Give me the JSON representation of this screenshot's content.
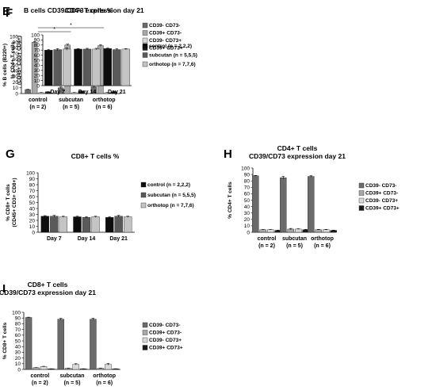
{
  "colors": {
    "control": "#0d0d0d",
    "subcutan": "#5a5a5a",
    "orthotop": "#c4c4c4",
    "dn": "#6b6b6b",
    "sp": "#a8a8a8",
    "dp_light": "#d9d9d9",
    "dp": "#1a1a1a"
  },
  "chart_data": [
    {
      "panel": "E",
      "type": "bar",
      "title": "B cells CD39/CD73 expression day 21",
      "ylabel": "% B cells (B220+)",
      "ylim": [
        0,
        100
      ],
      "yticks": [
        0,
        10,
        20,
        30,
        40,
        50,
        60,
        70,
        80,
        90,
        100
      ],
      "categories": [
        [
          "control",
          "(n = 2)"
        ],
        [
          "subcutan",
          "(n = 5)"
        ],
        [
          "orthotop",
          "(n = 6)"
        ]
      ],
      "series": [
        {
          "name": "CD39- CD73-",
          "color": "dn",
          "values": [
            7,
            10,
            12
          ],
          "err": [
            0.5,
            1.5,
            1.5
          ]
        },
        {
          "name": "CD39+ CD73-",
          "color": "sp",
          "values": [
            90,
            85,
            84
          ],
          "err": [
            1,
            1.5,
            1.5
          ]
        },
        {
          "name": "CD39- CD73+",
          "color": "dp_light",
          "values": [
            1.5,
            1.5,
            1.5
          ],
          "err": [
            0.3,
            0.3,
            0.3
          ]
        },
        {
          "name": "CD39+ CD73+",
          "color": "dp",
          "values": [
            3,
            4,
            3
          ],
          "err": [
            0.3,
            0.5,
            0.5
          ]
        }
      ],
      "significance": [
        {
          "label": "*",
          "from": 0,
          "to": 1
        },
        {
          "label": "*",
          "from": 0,
          "to": 2
        }
      ]
    },
    {
      "panel": "F",
      "type": "bar",
      "title": "CD4+ T cells %",
      "ylabel": [
        "% CD4+ T cells",
        "(CD45+ CD3+ CD4+)"
      ],
      "ylim": [
        0,
        100
      ],
      "yticks": [
        0,
        10,
        20,
        30,
        40,
        50,
        60,
        70,
        80,
        90,
        100
      ],
      "categories": [
        "Day 7",
        "Day 14",
        "Day 21"
      ],
      "series": [
        {
          "name": "control (n = 2,2,2)",
          "color": "control",
          "values": [
            70,
            72,
            73
          ],
          "err": [
            1.5,
            1,
            1
          ]
        },
        {
          "name": "subcutan (n = 5,5,5)",
          "color": "subcutan",
          "values": [
            71,
            72,
            71
          ],
          "err": [
            2,
            1.5,
            1.5
          ]
        },
        {
          "name": "orthotop (n = 7,7,6)",
          "color": "orthotop",
          "values": [
            72,
            72,
            72
          ],
          "err": [
            2,
            1.5,
            1
          ]
        }
      ]
    },
    {
      "panel": "G",
      "type": "bar",
      "title": "CD8+ T cells %",
      "ylabel": [
        "% CD8+ T cells",
        "(CD45+ CD3+ CD8+)"
      ],
      "ylim": [
        0,
        100
      ],
      "yticks": [
        0,
        10,
        20,
        30,
        40,
        50,
        60,
        70,
        80,
        90,
        100
      ],
      "categories": [
        "Day 7",
        "Day 14",
        "Day 21"
      ],
      "series": [
        {
          "name": "control (n = 2,2,2)",
          "color": "control",
          "values": [
            27,
            26,
            25
          ],
          "err": [
            1,
            1,
            1
          ]
        },
        {
          "name": "subcutan (n = 5,5,5)",
          "color": "subcutan",
          "values": [
            27,
            25,
            27
          ],
          "err": [
            1.5,
            1,
            1.5
          ]
        },
        {
          "name": "orthotop (n = 7,7,6)",
          "color": "orthotop",
          "values": [
            26,
            26,
            26
          ],
          "err": [
            1,
            1,
            1
          ]
        }
      ]
    },
    {
      "panel": "H",
      "type": "bar",
      "title": [
        "CD4+ T cells",
        "CD39/CD73 expression day 21"
      ],
      "ylabel": "% CD4+ T cells",
      "ylim": [
        0,
        100
      ],
      "yticks": [
        0,
        10,
        20,
        30,
        40,
        50,
        60,
        70,
        80,
        90,
        100
      ],
      "categories": [
        [
          "control",
          "(n = 2)"
        ],
        [
          "subcutan",
          "(n = 5)"
        ],
        [
          "orthotop",
          "(n = 6)"
        ]
      ],
      "series": [
        {
          "name": "CD39- CD73-",
          "color": "dn",
          "values": [
            88,
            85,
            87
          ],
          "err": [
            0.5,
            2,
            1
          ]
        },
        {
          "name": "CD39+ CD73-",
          "color": "sp",
          "values": [
            4,
            5,
            4
          ],
          "err": [
            0.3,
            1,
            0.5
          ]
        },
        {
          "name": "CD39- CD73+",
          "color": "dp_light",
          "values": [
            4,
            5,
            4
          ],
          "err": [
            0.3,
            0.5,
            0.5
          ]
        },
        {
          "name": "CD39+ CD73+",
          "color": "dp",
          "values": [
            3,
            4,
            3
          ],
          "err": [
            0.3,
            0.5,
            0.3
          ]
        }
      ]
    },
    {
      "panel": "I",
      "type": "bar",
      "title": [
        "CD8+ T cells",
        "CD39/CD73 expression day 21"
      ],
      "ylabel": "% CD8+ T cells",
      "ylim": [
        0,
        100
      ],
      "yticks": [
        0,
        10,
        20,
        30,
        40,
        50,
        60,
        70,
        80,
        90,
        100
      ],
      "categories": [
        [
          "control",
          "(n = 2)"
        ],
        [
          "subcutan",
          "(n = 5)"
        ],
        [
          "orthotop",
          "(n = 6)"
        ]
      ],
      "series": [
        {
          "name": "CD39- CD73-",
          "color": "dn",
          "values": [
            91,
            88,
            88
          ],
          "err": [
            0.5,
            1.5,
            1.5
          ]
        },
        {
          "name": "CD39+ CD73-",
          "color": "sp",
          "values": [
            3,
            2,
            2
          ],
          "err": [
            0.3,
            0.3,
            0.3
          ]
        },
        {
          "name": "CD39- CD73+",
          "color": "dp_light",
          "values": [
            5,
            9,
            9
          ],
          "err": [
            0.5,
            1,
            1.5
          ]
        },
        {
          "name": "CD39+ CD73+",
          "color": "dp",
          "values": [
            1,
            1,
            1
          ],
          "err": [
            0.2,
            0.2,
            0.2
          ]
        }
      ]
    }
  ]
}
